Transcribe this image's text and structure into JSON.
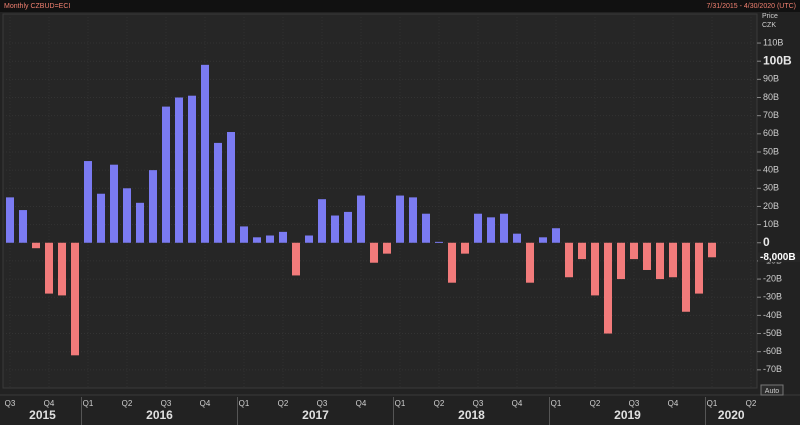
{
  "header": {
    "title": "Monthly CZBUD=ECI",
    "range": "7/31/2015 - 4/30/2020 (UTC)"
  },
  "chart_data": {
    "type": "bar",
    "axis_title": "Price",
    "axis_unit": "CZK",
    "values": [
      25,
      18,
      -3,
      -28,
      -29,
      -62,
      45,
      27,
      43,
      30,
      22,
      40,
      75,
      80,
      81,
      98,
      55,
      61,
      9,
      3,
      4,
      6,
      -18,
      4,
      24,
      15,
      17,
      26,
      -11,
      -6,
      26,
      25,
      16,
      0.5,
      -22,
      -6,
      16,
      14,
      16,
      5,
      -22,
      3,
      8,
      -19,
      -9,
      -29,
      -50,
      -20,
      -9,
      -15,
      -20,
      -19,
      -38,
      -28,
      -8,
      null,
      null,
      null
    ],
    "positive_color": "#7b7bf2",
    "negative_color": "#f27b7b",
    "quarters": [
      "Q3",
      "Q4",
      "Q1",
      "Q2",
      "Q3",
      "Q4",
      "Q1",
      "Q2",
      "Q3",
      "Q4",
      "Q1",
      "Q2",
      "Q3",
      "Q4",
      "Q1",
      "Q2",
      "Q3",
      "Q4",
      "Q1",
      "Q2"
    ],
    "years": [
      "2015",
      "2016",
      "2017",
      "2018",
      "2019",
      "2020"
    ],
    "ylim": [
      -80,
      126
    ],
    "yticks": [
      {
        "value": 110,
        "label": "110B"
      },
      {
        "value": 100,
        "label": "100B"
      },
      {
        "value": 90,
        "label": "90B"
      },
      {
        "value": 80,
        "label": "80B"
      },
      {
        "value": 70,
        "label": "70B"
      },
      {
        "value": 60,
        "label": "60B"
      },
      {
        "value": 50,
        "label": "50B"
      },
      {
        "value": 40,
        "label": "40B"
      },
      {
        "value": 30,
        "label": "30B"
      },
      {
        "value": 20,
        "label": "20B"
      },
      {
        "value": 10,
        "label": "10B"
      },
      0,
      {
        "value": -10,
        "label": "-10B"
      },
      {
        "value": -20,
        "label": "-20B"
      },
      {
        "value": -30,
        "label": "-30B"
      },
      {
        "value": -40,
        "label": "-40B"
      },
      {
        "value": -50,
        "label": "-50B"
      },
      {
        "value": -60,
        "label": "-60B"
      },
      {
        "value": -70,
        "label": "-70B"
      }
    ],
    "last_value": {
      "value": -8,
      "label": "-8,000B"
    },
    "scale_button": "Auto",
    "grid": true
  }
}
